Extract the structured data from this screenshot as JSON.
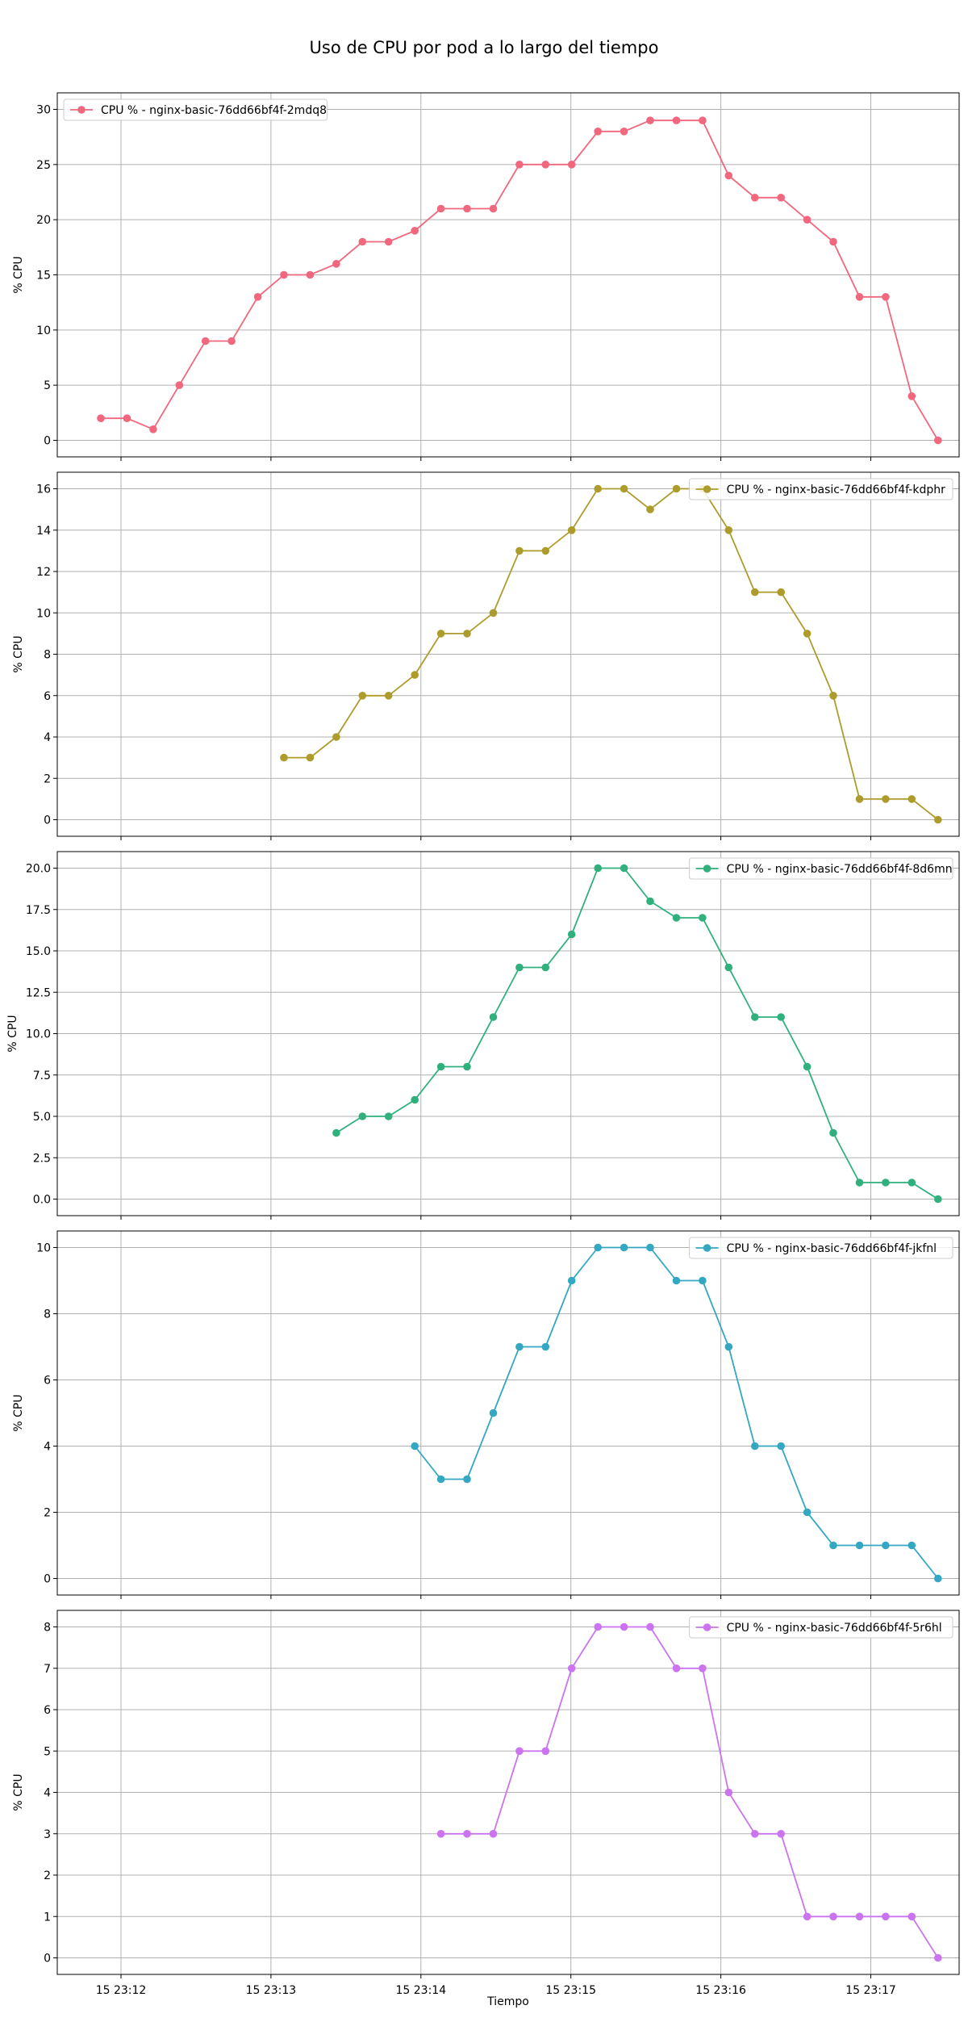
{
  "chart_data": {
    "type": "line",
    "title": "Uso de CPU por pod a lo largo del tiempo",
    "xlabel": "Tiempo",
    "x_ticks": [
      "15 23:12",
      "15 23:13",
      "15 23:14",
      "15 23:15",
      "15 23:16",
      "15 23:17"
    ],
    "x": [
      "23:11:53",
      "23:12:03",
      "23:12:13",
      "23:12:23",
      "23:12:33",
      "23:12:43",
      "23:12:53",
      "23:13:03",
      "23:13:13",
      "23:13:23",
      "23:13:33",
      "23:13:43",
      "23:13:53",
      "23:14:03",
      "23:14:13",
      "23:14:23",
      "23:14:33",
      "23:14:43",
      "23:14:53",
      "23:15:03",
      "23:15:13",
      "23:15:23",
      "23:15:33",
      "23:15:43",
      "23:15:53",
      "23:16:03",
      "23:16:13",
      "23:16:23",
      "23:16:33",
      "23:16:43",
      "23:16:53",
      "23:17:03",
      "23:17:13"
    ],
    "grid": true,
    "panels": [
      {
        "name": "CPU % - nginx-basic-76dd66bf4f-2mdq8",
        "color": "#f0677e",
        "ylabel": "% CPU",
        "legend": "top-left",
        "ylim": [
          -1.5,
          31.5
        ],
        "yticks": [
          0,
          5,
          10,
          15,
          20,
          25,
          30
        ],
        "values": [
          2,
          2,
          1,
          5,
          9,
          9,
          13,
          15,
          15,
          16,
          18,
          18,
          19,
          21,
          21,
          21,
          25,
          25,
          25,
          28,
          28,
          29,
          29,
          29,
          24,
          22,
          22,
          20,
          18,
          13,
          13,
          4,
          0
        ]
      },
      {
        "name": "CPU % - nginx-basic-76dd66bf4f-kdphr",
        "color": "#ad9c2c",
        "ylabel": "% CPU",
        "legend": "top-right",
        "ylim": [
          -0.8,
          16.8
        ],
        "yticks": [
          0,
          2,
          4,
          6,
          8,
          10,
          12,
          14,
          16
        ],
        "values": [
          null,
          null,
          null,
          null,
          null,
          null,
          null,
          3,
          3,
          4,
          6,
          6,
          7,
          9,
          9,
          10,
          13,
          13,
          14,
          16,
          16,
          15,
          16,
          16,
          14,
          11,
          11,
          9,
          6,
          1,
          1,
          1,
          0
        ]
      },
      {
        "name": "CPU % - nginx-basic-76dd66bf4f-8d6mn",
        "color": "#30b07c",
        "ylabel": "% CPU",
        "legend": "top-right",
        "ylim": [
          -1.0,
          21.0
        ],
        "yticks": [
          0.0,
          2.5,
          5.0,
          7.5,
          10.0,
          12.5,
          15.0,
          17.5,
          20.0
        ],
        "values": [
          null,
          null,
          null,
          null,
          null,
          null,
          null,
          null,
          null,
          4,
          5,
          5,
          6,
          8,
          8,
          11,
          14,
          14,
          16,
          20,
          20,
          18,
          17,
          17,
          14,
          11,
          11,
          8,
          4,
          1,
          1,
          1,
          0
        ]
      },
      {
        "name": "CPU % - nginx-basic-76dd66bf4f-jkfnl",
        "color": "#34a7c2",
        "ylabel": "% CPU",
        "legend": "top-right",
        "ylim": [
          -0.5,
          10.5
        ],
        "yticks": [
          0,
          2,
          4,
          6,
          8,
          10
        ],
        "values": [
          null,
          null,
          null,
          null,
          null,
          null,
          null,
          null,
          null,
          null,
          null,
          null,
          4,
          3,
          3,
          5,
          7,
          7,
          9,
          10,
          10,
          10,
          9,
          9,
          7,
          4,
          4,
          2,
          1,
          1,
          1,
          1,
          0
        ]
      },
      {
        "name": "CPU % - nginx-basic-76dd66bf4f-5r6hl",
        "color": "#cc73f0",
        "ylabel": "% CPU",
        "legend": "top-right",
        "ylim": [
          -0.4,
          8.4
        ],
        "yticks": [
          0,
          1,
          2,
          3,
          4,
          5,
          6,
          7,
          8
        ],
        "values": [
          null,
          null,
          null,
          null,
          null,
          null,
          null,
          null,
          null,
          null,
          null,
          null,
          null,
          3,
          3,
          3,
          5,
          5,
          7,
          8,
          8,
          8,
          7,
          7,
          4,
          3,
          3,
          1,
          1,
          1,
          1,
          1,
          0
        ]
      }
    ]
  }
}
